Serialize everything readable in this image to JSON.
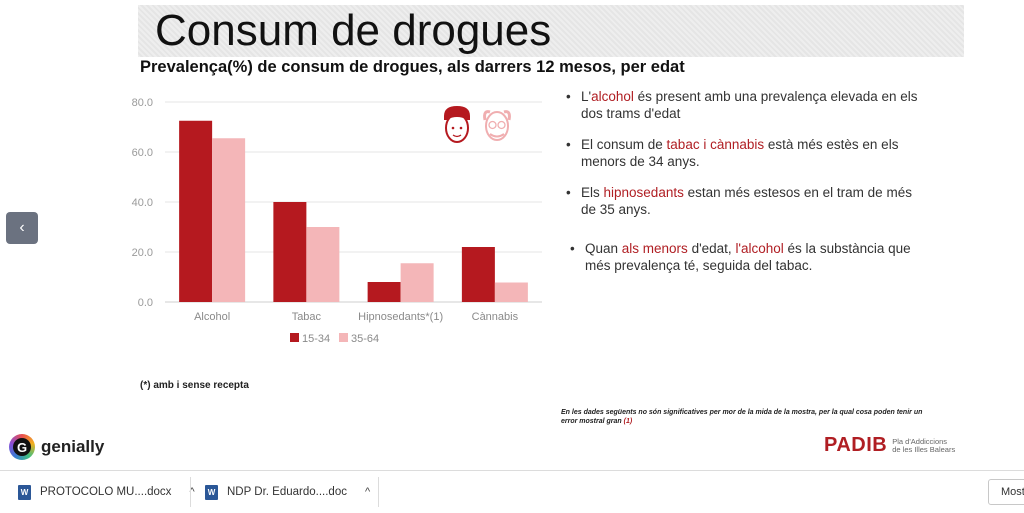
{
  "slide": {
    "title": "Consum de drogues",
    "subtitle": "Prevalença(%) de consum de drogues, als darrers 12 mesos, per edat",
    "footnote": "(*) amb i sense recepta",
    "note": "En les dades següents no són significatives per mor de la mida de la mostra, per la qual cosa poden tenir un error mostral gran",
    "note_ref": "(1)"
  },
  "bullets": [
    {
      "parts": [
        {
          "t": "L'"
        },
        {
          "t": "alcohol",
          "hl": true
        },
        {
          "t": " és present amb una prevalença elevada en els dos trams d'edat"
        }
      ]
    },
    {
      "parts": [
        {
          "t": "El consum de "
        },
        {
          "t": "tabac i cànnabis",
          "hl": true
        },
        {
          "t": " està més estès en els menors de 34 anys."
        }
      ]
    },
    {
      "parts": [
        {
          "t": "Els "
        },
        {
          "t": "hipnosedants",
          "hl": true
        },
        {
          "t": " estan més estesos en el tram de més de 35 anys."
        }
      ]
    },
    {
      "parts": [
        {
          "t": "Quan "
        },
        {
          "t": "als menors",
          "hl": true
        },
        {
          "t": " d'edat, "
        },
        {
          "t": "l'alcohol",
          "hl": true
        },
        {
          "t": " és la substància que més prevalença té, seguida del tabac."
        }
      ]
    }
  ],
  "chart_data": {
    "type": "bar",
    "categories": [
      "Alcohol",
      "Tabac",
      "Hipnosedants*(1)",
      "Cànnabis"
    ],
    "series": [
      {
        "name": "15-34",
        "values": [
          72.5,
          40.0,
          8.0,
          22.0
        ],
        "color": "#b5191f"
      },
      {
        "name": "35-64",
        "values": [
          65.5,
          30.0,
          15.5,
          7.8
        ],
        "color": "#f4b6b8"
      }
    ],
    "yticks": [
      "0.0",
      "20.0",
      "40.0",
      "60.0",
      "80.0"
    ],
    "ylim": [
      0,
      80
    ],
    "grid": true,
    "legend": "bottom"
  },
  "branding": {
    "genially": "genially",
    "genially_glyph": "G",
    "padib": "PADIB",
    "padib_sub_1": "Pla d'Addiccions",
    "padib_sub_2": "de les Illes Balears"
  },
  "nav": {
    "prev_icon": "chevron-left-icon",
    "prev_glyph": "‹"
  },
  "downloads": {
    "items": [
      {
        "label": "PROTOCOLO MU....docx",
        "icon": "word-doc-icon"
      },
      {
        "label": "NDP Dr. Eduardo....doc",
        "icon": "word-doc-icon"
      }
    ],
    "icon_glyph": "W",
    "chevron_glyph": "^",
    "show_all": "Most"
  }
}
